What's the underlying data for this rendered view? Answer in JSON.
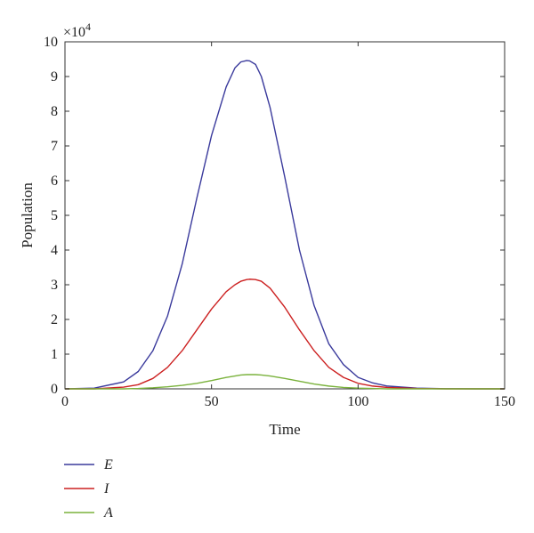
{
  "chart_data": {
    "type": "line",
    "xlabel": "Time",
    "ylabel": "Population",
    "y_multiplier_label": "×10",
    "y_multiplier_exponent": "4",
    "xlim": [
      0,
      150
    ],
    "ylim": [
      0,
      10
    ],
    "x_ticks": [
      0,
      50,
      100,
      150
    ],
    "y_ticks": [
      0,
      1,
      2,
      3,
      4,
      5,
      6,
      7,
      8,
      9,
      10
    ],
    "grid": false,
    "legend_position": "bottom-left, below the plot",
    "x": [
      0,
      10,
      20,
      25,
      30,
      35,
      40,
      45,
      50,
      55,
      58,
      60,
      62,
      63,
      65,
      67,
      70,
      75,
      80,
      85,
      90,
      95,
      100,
      105,
      110,
      120,
      130,
      140,
      150
    ],
    "series": [
      {
        "name": "E",
        "color": "#3a3a9c",
        "values": [
          0,
          0.02,
          0.2,
          0.5,
          1.1,
          2.1,
          3.6,
          5.5,
          7.3,
          8.7,
          9.25,
          9.42,
          9.46,
          9.45,
          9.35,
          9.0,
          8.1,
          6.1,
          4.0,
          2.4,
          1.3,
          0.7,
          0.33,
          0.17,
          0.08,
          0.02,
          0.005,
          0.0,
          0.0
        ]
      },
      {
        "name": "I",
        "color": "#cc2020",
        "values": [
          0,
          0.0,
          0.05,
          0.12,
          0.3,
          0.62,
          1.1,
          1.7,
          2.3,
          2.8,
          3.0,
          3.1,
          3.15,
          3.16,
          3.15,
          3.1,
          2.9,
          2.35,
          1.7,
          1.1,
          0.62,
          0.33,
          0.16,
          0.08,
          0.04,
          0.01,
          0.0,
          0.0,
          0.0
        ]
      },
      {
        "name": "A",
        "color": "#7ab23c",
        "values": [
          0,
          0.0,
          0.0,
          0.01,
          0.03,
          0.06,
          0.1,
          0.16,
          0.24,
          0.33,
          0.37,
          0.4,
          0.41,
          0.41,
          0.41,
          0.4,
          0.37,
          0.3,
          0.22,
          0.14,
          0.08,
          0.04,
          0.02,
          0.01,
          0.0,
          0.0,
          0.0,
          0.0,
          0.0
        ]
      }
    ]
  }
}
